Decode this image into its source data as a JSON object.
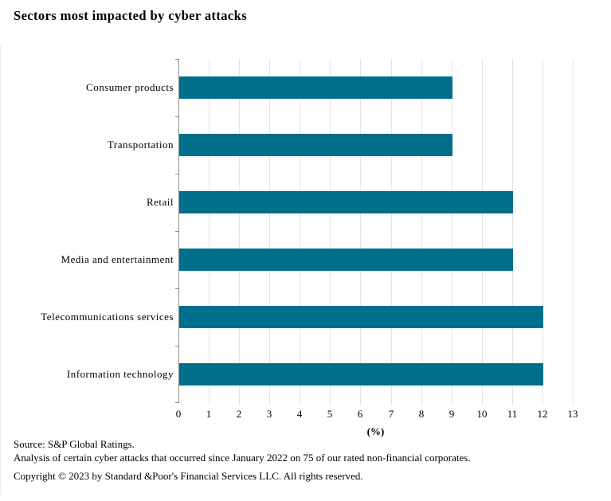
{
  "title": "Sectors most impacted by cyber attacks",
  "chart_data": {
    "type": "bar",
    "orientation": "horizontal",
    "title": "Sectors most impacted by cyber attacks",
    "categories": [
      "Consumer products",
      "Transportation",
      "Retail",
      "Media and entertainment",
      "Telecommunications services",
      "Information technology"
    ],
    "values": [
      9,
      9,
      11,
      11,
      12,
      12
    ],
    "xlabel": "(%)",
    "ylabel": "",
    "xlim": [
      0,
      13
    ],
    "x_ticks": [
      0,
      1,
      2,
      3,
      4,
      5,
      6,
      7,
      8,
      9,
      10,
      11,
      12,
      13
    ],
    "grid": true,
    "legend": "none",
    "bar_color": "#006F8C",
    "gridline_color": "#E4E4E4",
    "axis_color": "#8C8C8C"
  },
  "footer": {
    "source": "Source: S&P Global Ratings.",
    "analysis": "Analysis of certain cyber attacks that occurred since January 2022 on 75 of our rated non-financial corporates.",
    "copyright": "Copyright © 2023 by Standard &Poor's Financial Services LLC. All rights reserved."
  }
}
